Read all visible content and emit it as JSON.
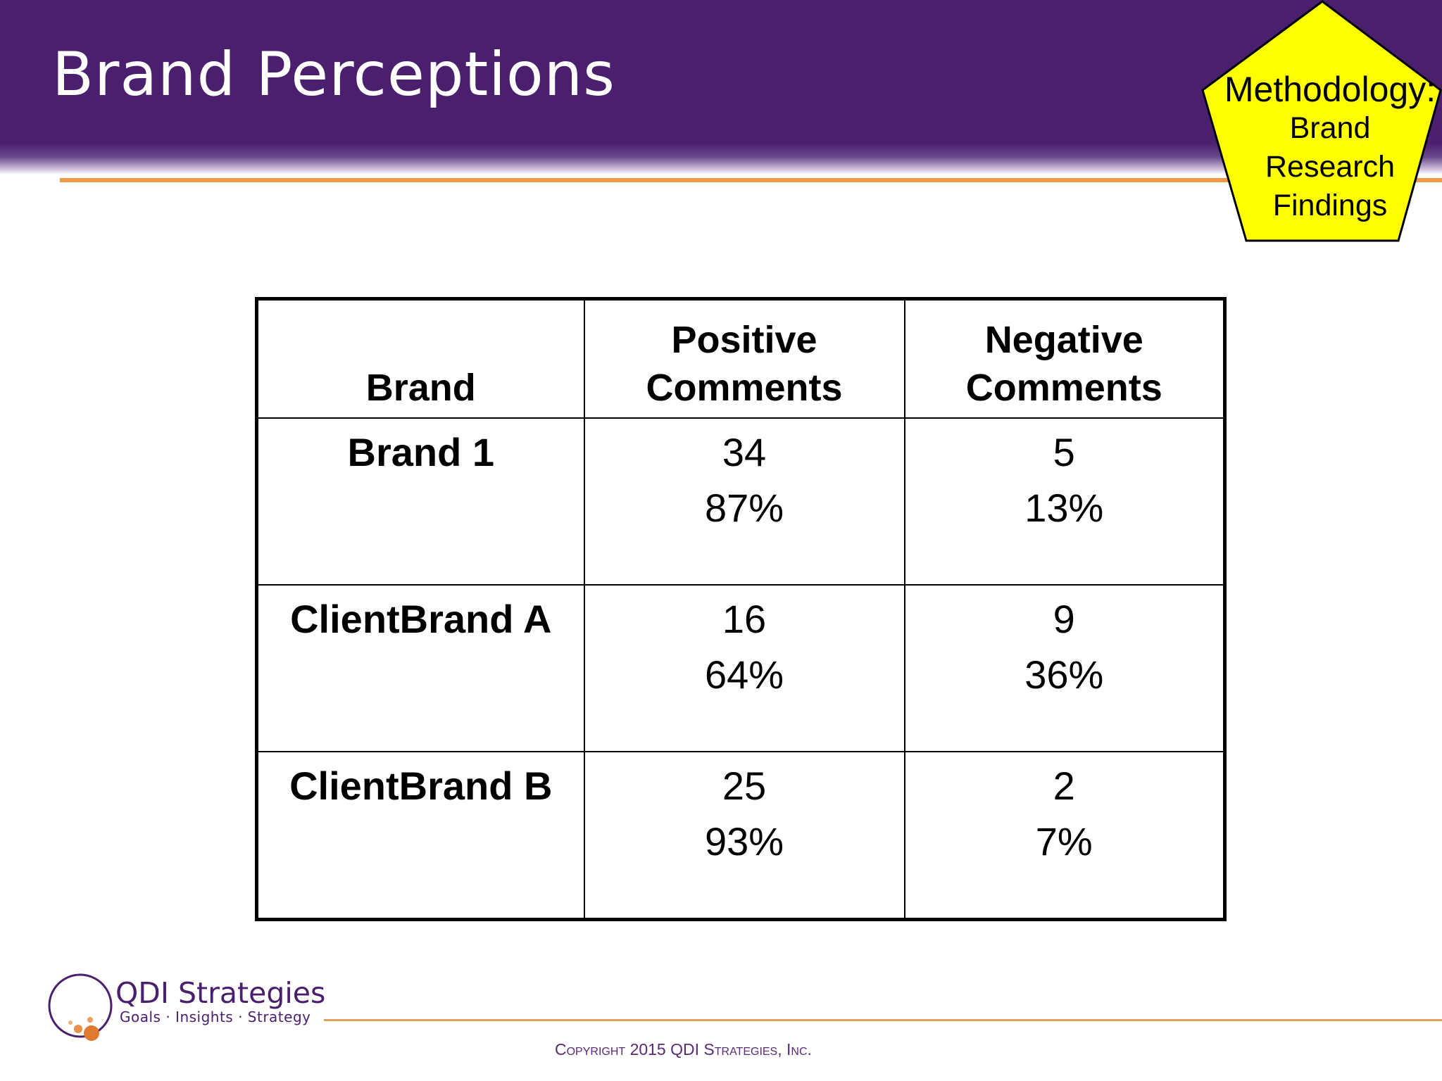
{
  "slide": {
    "title": "Brand Perceptions"
  },
  "badge": {
    "line1": "Methodology:",
    "line2": "Brand",
    "line3": "Research",
    "line4": "Findings",
    "fill": "#ffff00"
  },
  "table": {
    "headers": [
      "Brand",
      "Positive Comments",
      "Negative Comments"
    ],
    "rows": [
      {
        "brand": "Brand 1",
        "positive_count": "34",
        "positive_pct": "87%",
        "negative_count": "5",
        "negative_pct": "13%"
      },
      {
        "brand": "ClientBrand A",
        "positive_count": "16",
        "positive_pct": "64%",
        "negative_count": "9",
        "negative_pct": "36%"
      },
      {
        "brand": "ClientBrand B",
        "positive_count": "25",
        "positive_pct": "93%",
        "negative_count": "2",
        "negative_pct": "7%"
      }
    ]
  },
  "logo": {
    "name": "QDI Strategies",
    "tagline": "Goals · Insights · Strategy"
  },
  "footer": {
    "copyright": "Copyright 2015 QDI Strategies, Inc."
  },
  "colors": {
    "header_purple": "#4a1f6e",
    "accent_orange": "#f29a4a"
  }
}
